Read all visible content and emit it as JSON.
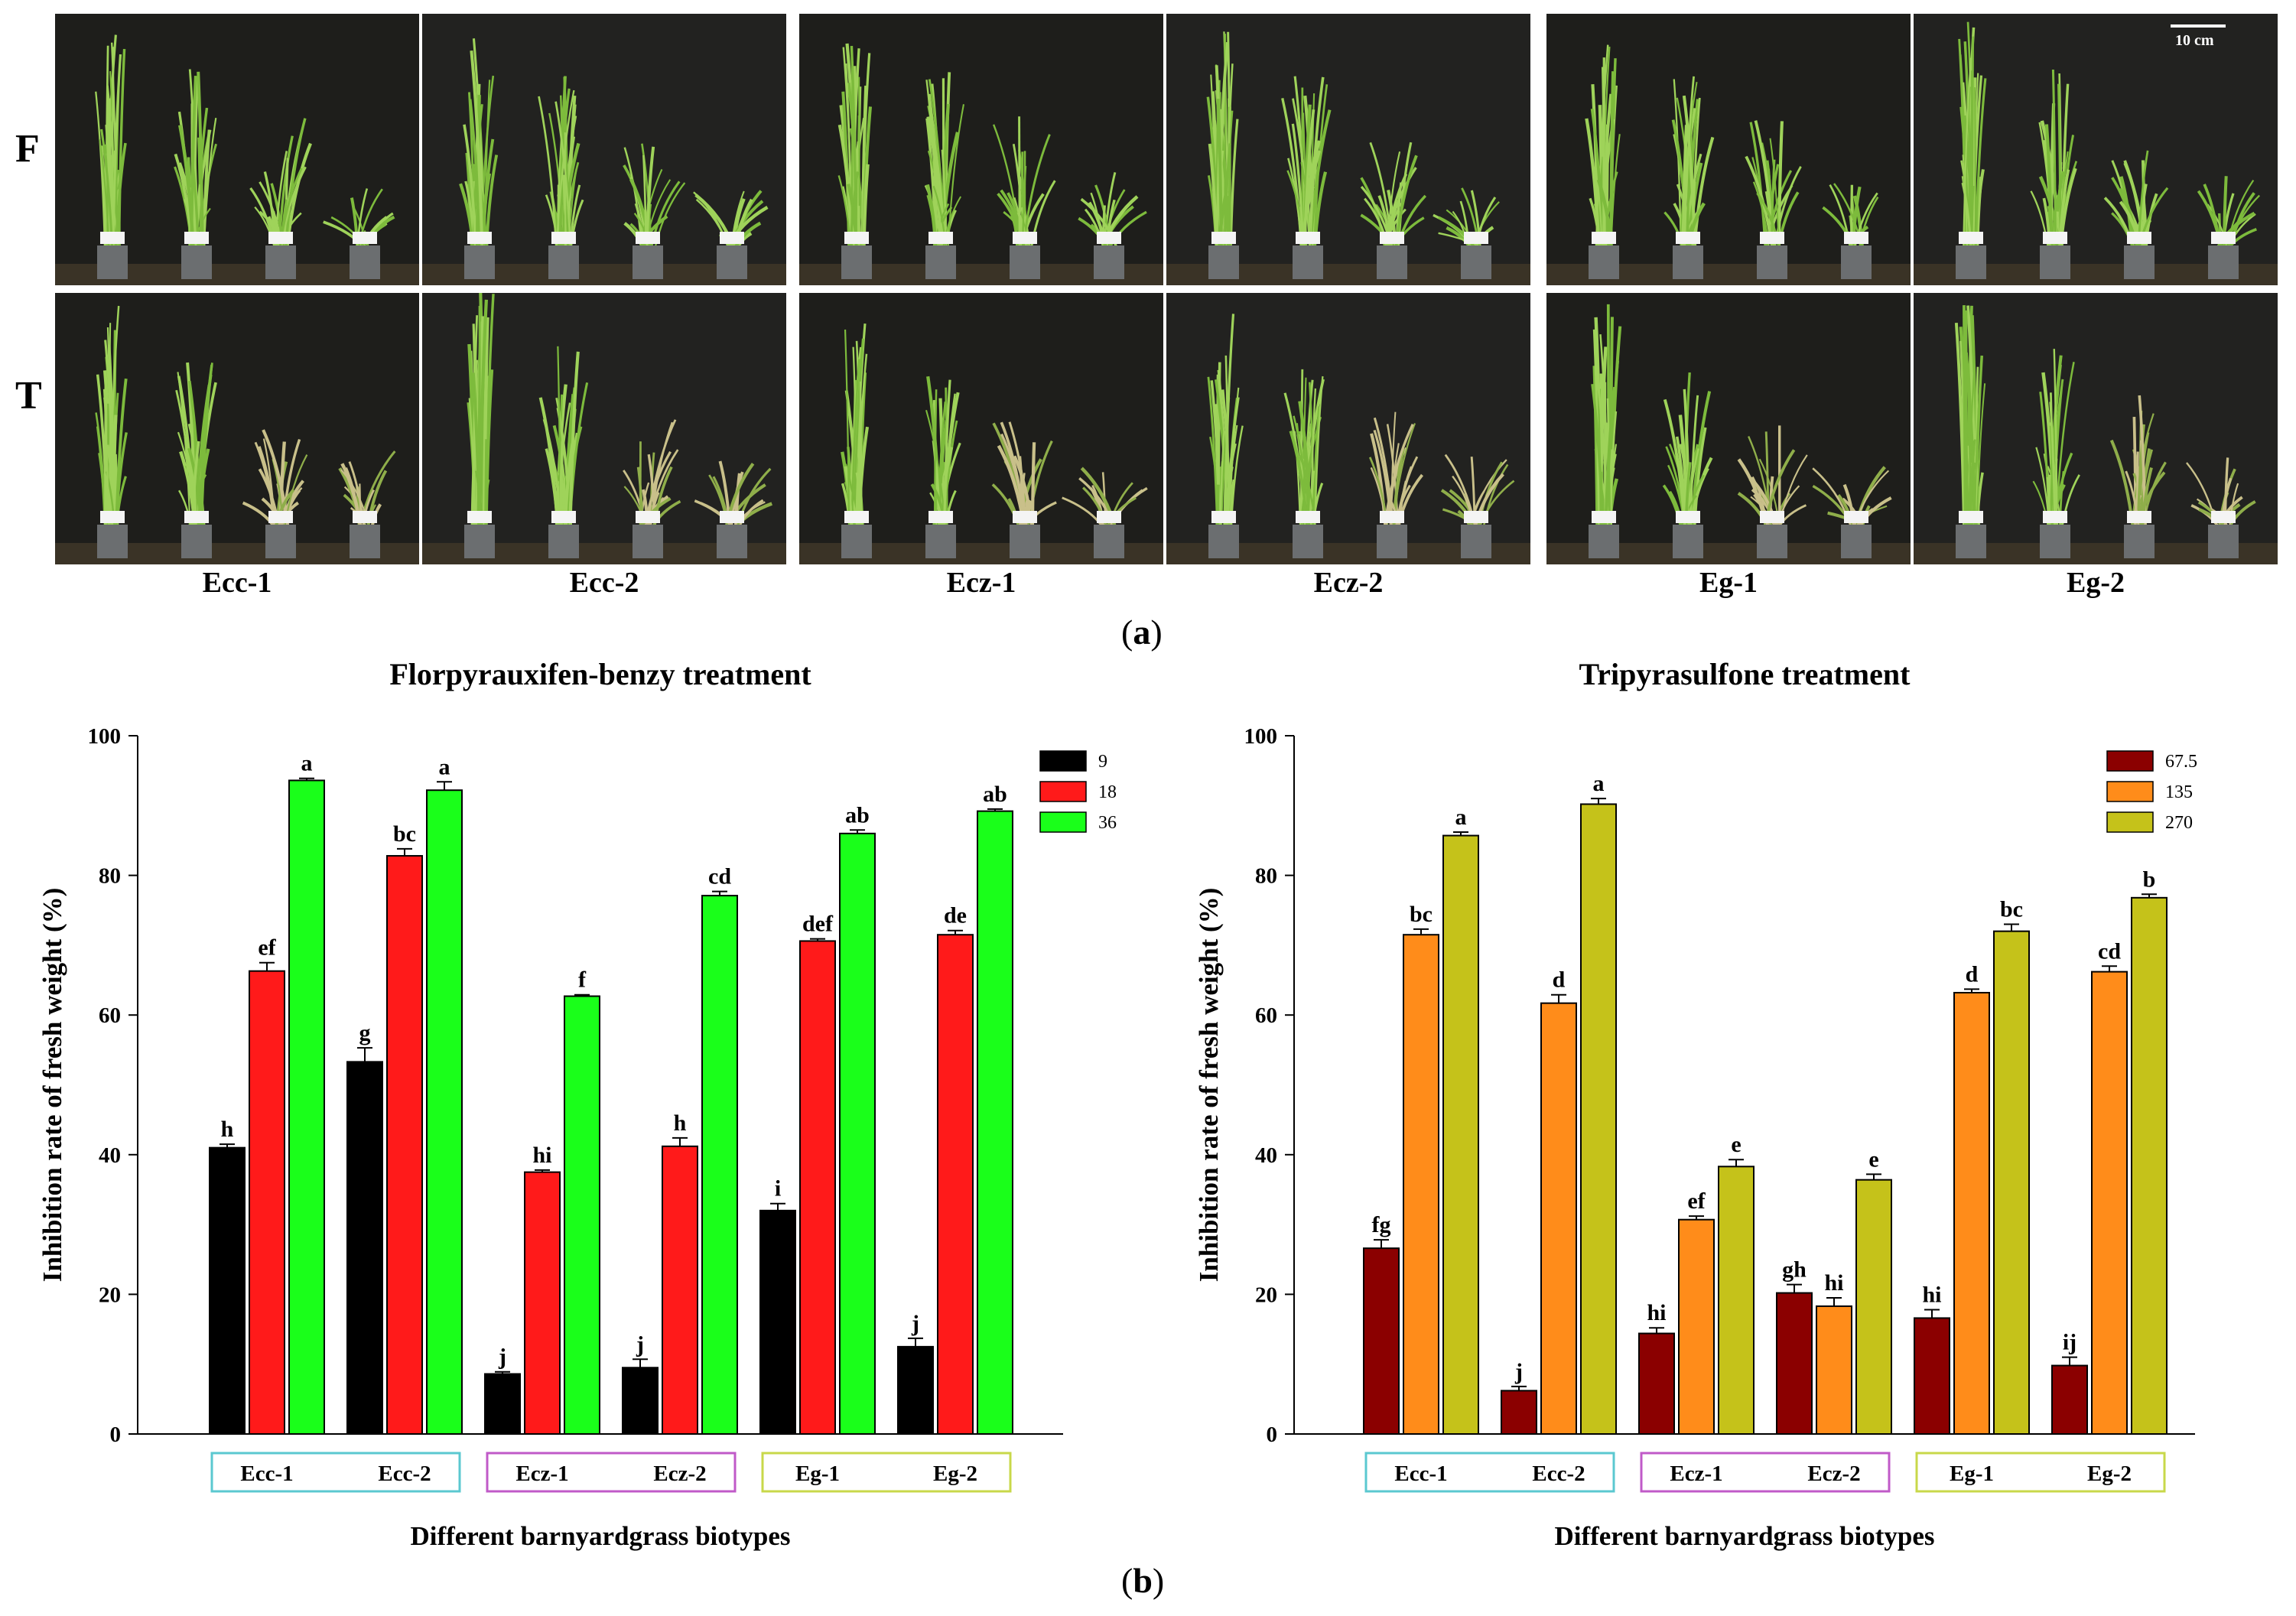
{
  "panel_a": {
    "label": "a",
    "rows": [
      "F",
      "T"
    ],
    "biotypes": [
      "Ecc-1",
      "Ecc-2",
      "Ecz-1",
      "Ecz-2",
      "Eg-1",
      "Eg-2"
    ],
    "scale_bar": "10 cm"
  },
  "panel_b": {
    "label": "b"
  },
  "chart_data": [
    {
      "type": "bar",
      "title": "Florpyrauxifen-benzy treatment",
      "xlabel": "Different barnyardgrass biotypes",
      "ylabel": "Inhibition rate of fresh weight (%)",
      "ylim": [
        0,
        100
      ],
      "yticks": [
        0,
        20,
        40,
        60,
        80,
        100
      ],
      "categories": [
        "Ecc-1",
        "Ecc-2",
        "Ecz-1",
        "Ecz-2",
        "Eg-1",
        "Eg-2"
      ],
      "groups": [
        {
          "members": [
            "Ecc-1",
            "Ecc-2"
          ],
          "color": "#5bc8d0"
        },
        {
          "members": [
            "Ecz-1",
            "Ecz-2"
          ],
          "color": "#c05ac8"
        },
        {
          "members": [
            "Eg-1",
            "Eg-2"
          ],
          "color": "#c8d84a"
        }
      ],
      "legend_position": "top-right",
      "series": [
        {
          "name": "9",
          "color": "#000000",
          "values": [
            41,
            53.3,
            8.6,
            9.5,
            32,
            12.5
          ],
          "errors": [
            0.5,
            2.0,
            0.3,
            1.2,
            1.0,
            1.2
          ],
          "letters": [
            "h",
            "g",
            "j",
            "j",
            "i",
            "j"
          ]
        },
        {
          "name": "18",
          "color": "#ff1a1a",
          "values": [
            66.3,
            82.8,
            37.5,
            41.2,
            70.6,
            71.5
          ],
          "errors": [
            1.2,
            1.0,
            0.3,
            1.2,
            0.3,
            0.6
          ],
          "letters": [
            "ef",
            "bc",
            "hi",
            "h",
            "def",
            "de"
          ]
        },
        {
          "name": "36",
          "color": "#1aff1a",
          "values": [
            93.6,
            92.2,
            62.7,
            77.1,
            86,
            89.2
          ],
          "errors": [
            0.3,
            1.2,
            0.2,
            0.6,
            0.5,
            0.3
          ],
          "letters": [
            "a",
            "a",
            "f",
            "cd",
            "ab",
            "ab"
          ]
        }
      ]
    },
    {
      "type": "bar",
      "title": "Tripyrasulfone treatment",
      "xlabel": "Different barnyardgrass biotypes",
      "ylabel": "Inhibition rate of fresh weight (%)",
      "ylim": [
        0,
        100
      ],
      "yticks": [
        0,
        20,
        40,
        60,
        80,
        100
      ],
      "categories": [
        "Ecc-1",
        "Ecc-2",
        "Ecz-1",
        "Ecz-2",
        "Eg-1",
        "Eg-2"
      ],
      "groups": [
        {
          "members": [
            "Ecc-1",
            "Ecc-2"
          ],
          "color": "#5bc8d0"
        },
        {
          "members": [
            "Ecz-1",
            "Ecz-2"
          ],
          "color": "#c05ac8"
        },
        {
          "members": [
            "Eg-1",
            "Eg-2"
          ],
          "color": "#c8d84a"
        }
      ],
      "legend_position": "top-right",
      "series": [
        {
          "name": "67.5",
          "color": "#8b0000",
          "values": [
            26.6,
            6.2,
            14.4,
            20.2,
            16.6,
            9.8
          ],
          "errors": [
            1.2,
            0.6,
            0.8,
            1.2,
            1.2,
            1.2
          ],
          "letters": [
            "fg",
            "j",
            "hi",
            "gh",
            "hi",
            "ij"
          ]
        },
        {
          "name": "135",
          "color": "#ff8c1a",
          "values": [
            71.5,
            61.7,
            30.7,
            18.3,
            63.2,
            66.2
          ],
          "errors": [
            0.8,
            1.2,
            0.5,
            1.2,
            0.5,
            0.8
          ],
          "letters": [
            "bc",
            "d",
            "ef",
            "hi",
            "d",
            "cd"
          ]
        },
        {
          "name": "270",
          "color": "#c5c21a",
          "values": [
            85.7,
            90.2,
            38.3,
            36.4,
            72,
            76.8
          ],
          "errors": [
            0.5,
            0.8,
            1.0,
            0.8,
            1.0,
            0.5
          ],
          "letters": [
            "a",
            "a",
            "e",
            "e",
            "bc",
            "b"
          ]
        }
      ]
    }
  ]
}
